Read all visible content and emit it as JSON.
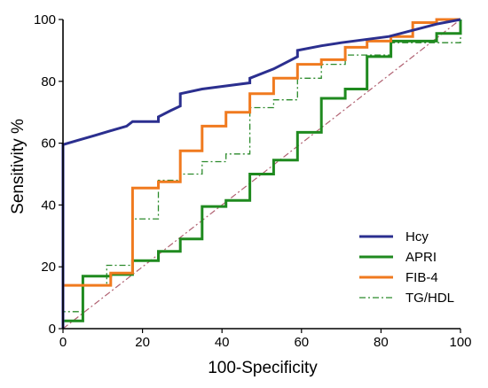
{
  "chart_data": {
    "type": "line",
    "title": "",
    "xlabel": "100-Specificity",
    "ylabel": "Sensitivity %",
    "xlim": [
      0,
      100
    ],
    "ylim": [
      0,
      100
    ],
    "x_ticks": [
      0,
      20,
      40,
      60,
      80,
      100
    ],
    "y_ticks": [
      0,
      20,
      40,
      60,
      80,
      100
    ],
    "grid": false,
    "legend_position": "bottom-right",
    "reference_line": {
      "points": [
        [
          0,
          0
        ],
        [
          100,
          100
        ]
      ],
      "color": "#b06070",
      "style": "dash-dot"
    },
    "series": [
      {
        "name": "Hcy",
        "color": "#2b2f8f",
        "style": "solid",
        "points": [
          [
            0,
            0
          ],
          [
            0,
            59.5
          ],
          [
            4,
            61
          ],
          [
            8,
            62.5
          ],
          [
            12,
            64
          ],
          [
            16,
            65.5
          ],
          [
            17.5,
            67
          ],
          [
            24,
            67
          ],
          [
            24,
            68.5
          ],
          [
            27,
            70.5
          ],
          [
            29.5,
            72
          ],
          [
            29.5,
            76
          ],
          [
            35,
            77.5
          ],
          [
            41,
            78.5
          ],
          [
            47,
            79.5
          ],
          [
            47,
            81
          ],
          [
            53,
            84
          ],
          [
            59,
            88
          ],
          [
            59,
            90
          ],
          [
            65,
            91.5
          ],
          [
            70,
            92.5
          ],
          [
            76,
            93.5
          ],
          [
            82,
            94.5
          ],
          [
            88,
            96.5
          ],
          [
            94,
            98.5
          ],
          [
            100,
            100
          ]
        ]
      },
      {
        "name": "APRI",
        "color": "#1f8a1f",
        "style": "solid",
        "points": [
          [
            0,
            0
          ],
          [
            0,
            2.5
          ],
          [
            5,
            2.5
          ],
          [
            5,
            17
          ],
          [
            12,
            17
          ],
          [
            12,
            17.5
          ],
          [
            17.5,
            17.5
          ],
          [
            17.5,
            22
          ],
          [
            24,
            22
          ],
          [
            24,
            25
          ],
          [
            29.5,
            25
          ],
          [
            29.5,
            29
          ],
          [
            35,
            29
          ],
          [
            35,
            39.5
          ],
          [
            41,
            39.5
          ],
          [
            41,
            41.5
          ],
          [
            47,
            41.5
          ],
          [
            47,
            50
          ],
          [
            53,
            50
          ],
          [
            53,
            54.5
          ],
          [
            59,
            54.5
          ],
          [
            59,
            58
          ],
          [
            59,
            63.5
          ],
          [
            65,
            63.5
          ],
          [
            65,
            74.5
          ],
          [
            71,
            74.5
          ],
          [
            71,
            77.5
          ],
          [
            76.5,
            77.5
          ],
          [
            76.5,
            88
          ],
          [
            82.5,
            88
          ],
          [
            82.5,
            93
          ],
          [
            94,
            93
          ],
          [
            94,
            95.5
          ],
          [
            100,
            95.5
          ],
          [
            100,
            100
          ]
        ]
      },
      {
        "name": "FIB-4",
        "color": "#f07a1f",
        "style": "solid",
        "points": [
          [
            0,
            0
          ],
          [
            0,
            14
          ],
          [
            5,
            14
          ],
          [
            12,
            14
          ],
          [
            12,
            18
          ],
          [
            17.5,
            18
          ],
          [
            17.5,
            45.5
          ],
          [
            24,
            45.5
          ],
          [
            24,
            47.5
          ],
          [
            29.5,
            47.5
          ],
          [
            29.5,
            57.5
          ],
          [
            35,
            57.5
          ],
          [
            35,
            65.5
          ],
          [
            41,
            65.5
          ],
          [
            41,
            70
          ],
          [
            47,
            70
          ],
          [
            47,
            76
          ],
          [
            53,
            76
          ],
          [
            53,
            81
          ],
          [
            59,
            81
          ],
          [
            59,
            85.5
          ],
          [
            65,
            85.5
          ],
          [
            65,
            87
          ],
          [
            71,
            87
          ],
          [
            71,
            91
          ],
          [
            76.5,
            91
          ],
          [
            76.5,
            93
          ],
          [
            82.5,
            93
          ],
          [
            82.5,
            94.5
          ],
          [
            88,
            94.5
          ],
          [
            88,
            99
          ],
          [
            94,
            99
          ],
          [
            94,
            100
          ],
          [
            100,
            100
          ]
        ]
      },
      {
        "name": "TG/HDL",
        "color": "#2b8a2b",
        "style": "dash-dot",
        "points": [
          [
            0,
            0
          ],
          [
            0,
            5.5
          ],
          [
            5,
            5.5
          ],
          [
            5,
            14
          ],
          [
            11,
            14
          ],
          [
            11,
            20.5
          ],
          [
            17.5,
            20.5
          ],
          [
            17.5,
            35.5
          ],
          [
            24,
            35.5
          ],
          [
            24,
            48
          ],
          [
            29.5,
            48
          ],
          [
            29.5,
            50
          ],
          [
            35,
            50
          ],
          [
            35,
            54
          ],
          [
            41,
            54
          ],
          [
            41,
            56.5
          ],
          [
            47,
            56.5
          ],
          [
            47,
            71.5
          ],
          [
            53,
            71.5
          ],
          [
            53,
            74
          ],
          [
            59,
            74
          ],
          [
            59,
            81
          ],
          [
            65,
            81
          ],
          [
            65,
            85.5
          ],
          [
            71,
            85.5
          ],
          [
            71,
            88.5
          ],
          [
            82.5,
            88.5
          ],
          [
            82.5,
            92.5
          ],
          [
            100,
            92.5
          ],
          [
            100,
            100
          ]
        ]
      }
    ]
  }
}
